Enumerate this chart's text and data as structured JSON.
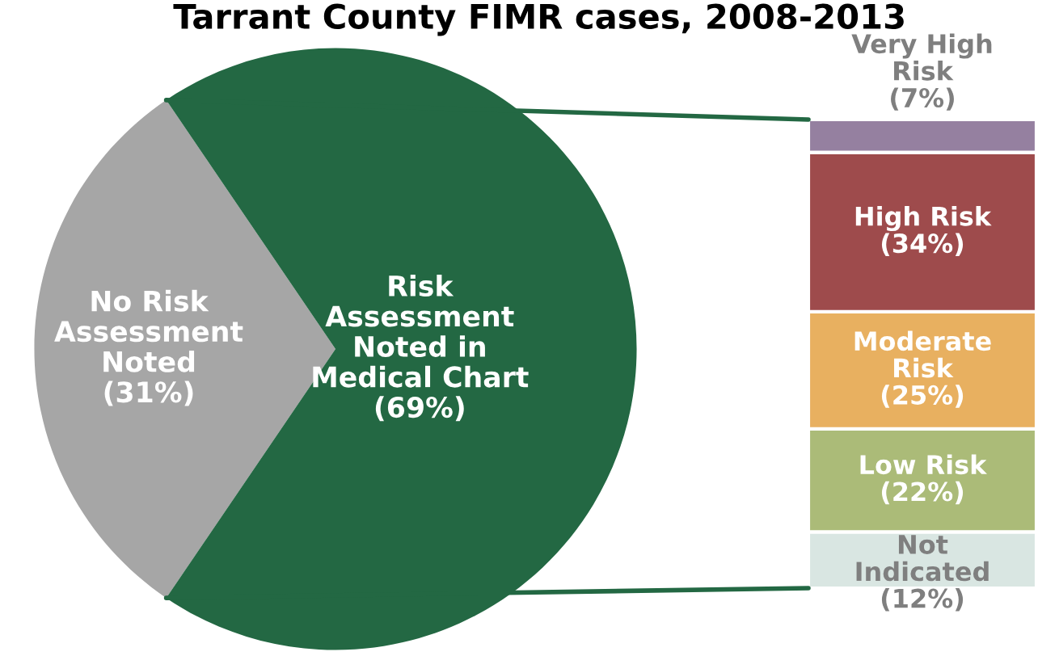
{
  "chart_data": [
    {
      "type": "pie",
      "title": "Tarrant County FIMR cases, 2008-2013",
      "categories": [
        "No Risk\nAssessment\nNoted",
        "Risk\nAssessment\nNoted in\nMedical Chart"
      ],
      "values": [
        31,
        69
      ],
      "colors": [
        "#a6a6a6",
        "#236843"
      ],
      "value_labels": [
        "(31%)",
        "(69%)"
      ]
    },
    {
      "type": "bar",
      "stacked": true,
      "categories": [
        null
      ],
      "series": [
        {
          "name": "Not\nIndicated",
          "color": "#d9e6e2",
          "values": [
            12
          ],
          "value_labels": [
            "(12%)"
          ]
        },
        {
          "name": "Low Risk",
          "color": "#abbb78",
          "values": [
            22
          ],
          "value_labels": [
            "(22%)"
          ]
        },
        {
          "name": "Moderate\nRisk",
          "color": "#e8b060",
          "values": [
            25
          ],
          "value_labels": [
            "(25%)"
          ]
        },
        {
          "name": "High Risk",
          "color": "#9e4b4c",
          "values": [
            34
          ],
          "value_labels": [
            "(34%)"
          ]
        },
        {
          "name": "Very High\nRisk",
          "color": "#9580a0",
          "values": [
            7
          ],
          "value_labels": [
            "(7%)"
          ]
        }
      ]
    }
  ]
}
